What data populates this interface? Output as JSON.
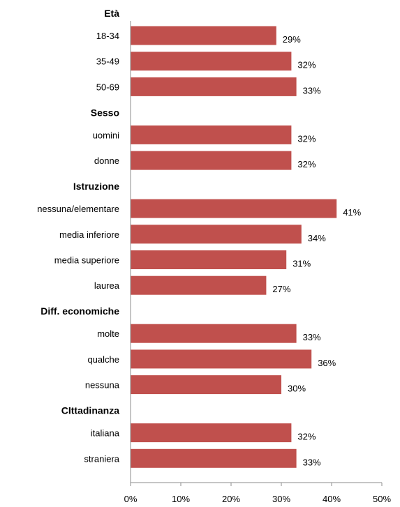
{
  "chart_data": {
    "type": "bar",
    "orientation": "horizontal",
    "bar_color": "#c0504d",
    "xlim": [
      0,
      50
    ],
    "x_ticks": [
      "0%",
      "10%",
      "20%",
      "30%",
      "40%",
      "50%"
    ],
    "grid": false,
    "groups": [
      {
        "title": "Età",
        "items": [
          {
            "label": "18-34",
            "value": 29,
            "value_label": "29%"
          },
          {
            "label": "35-49",
            "value": 32,
            "value_label": "32%"
          },
          {
            "label": "50-69",
            "value": 33,
            "value_label": "33%"
          }
        ]
      },
      {
        "title": "Sesso",
        "items": [
          {
            "label": "uomini",
            "value": 32,
            "value_label": "32%"
          },
          {
            "label": "donne",
            "value": 32,
            "value_label": "32%"
          }
        ]
      },
      {
        "title": "Istruzione",
        "items": [
          {
            "label": "nessuna/elementare",
            "value": 41,
            "value_label": "41%"
          },
          {
            "label": "media inferiore",
            "value": 34,
            "value_label": "34%"
          },
          {
            "label": "media superiore",
            "value": 31,
            "value_label": "31%"
          },
          {
            "label": "laurea",
            "value": 27,
            "value_label": "27%"
          }
        ]
      },
      {
        "title": "Diff. economiche",
        "items": [
          {
            "label": "molte",
            "value": 33,
            "value_label": "33%"
          },
          {
            "label": "qualche",
            "value": 36,
            "value_label": "36%"
          },
          {
            "label": "nessuna",
            "value": 30,
            "value_label": "30%"
          }
        ]
      },
      {
        "title": "CIttadinanza",
        "items": [
          {
            "label": "italiana",
            "value": 32,
            "value_label": "32%"
          },
          {
            "label": "straniera",
            "value": 33,
            "value_label": "33%"
          }
        ]
      }
    ]
  }
}
